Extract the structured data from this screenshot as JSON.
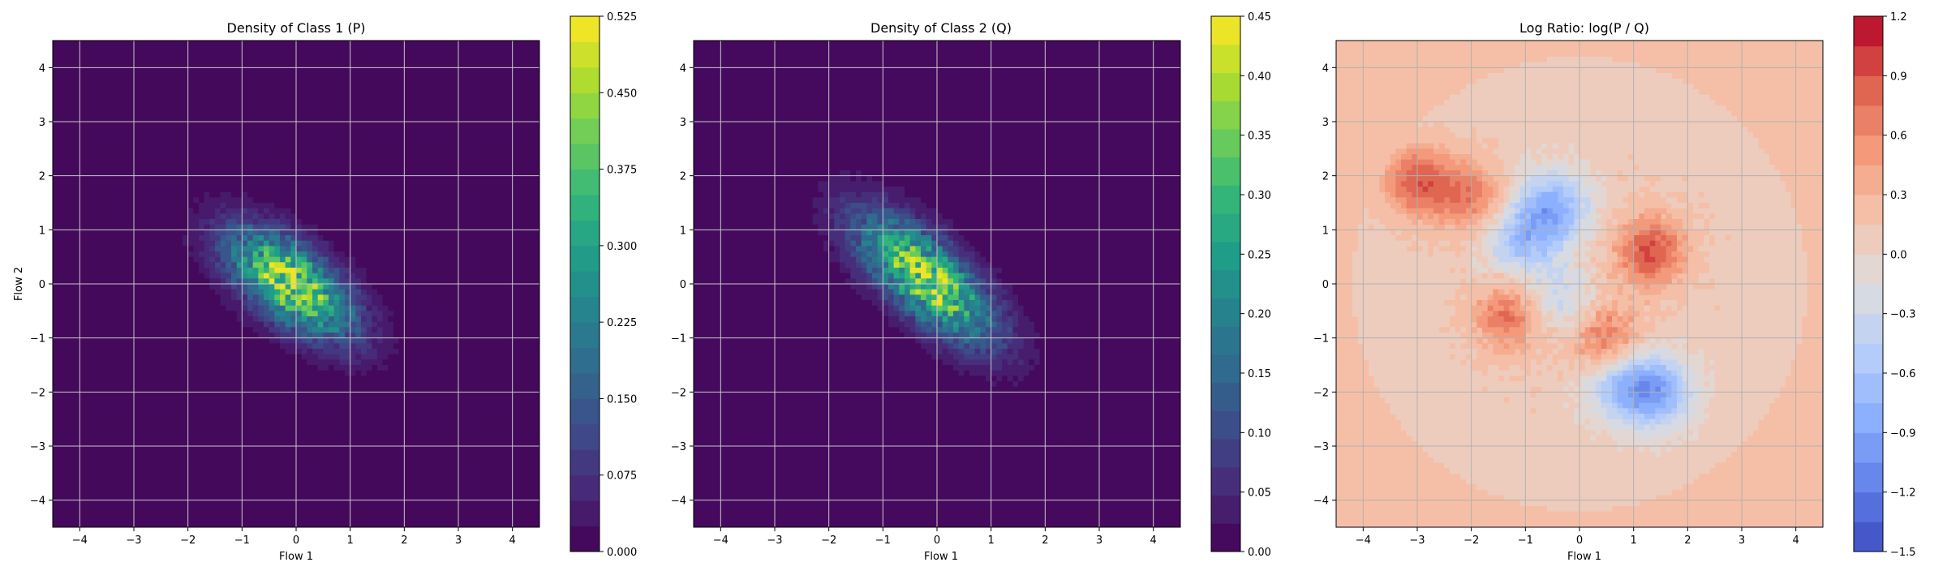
{
  "chart_data": [
    {
      "type": "heatmap",
      "title": "Density of Class 1 (P)",
      "xlabel": "Flow 1",
      "ylabel": "Flow 2",
      "xlim": [
        -4.5,
        4.5
      ],
      "ylim": [
        -4.5,
        4.5
      ],
      "xticks": [
        "−4",
        "−3",
        "−2",
        "−1",
        "0",
        "1",
        "2",
        "3",
        "4"
      ],
      "yticks": [
        "−4",
        "−3",
        "−2",
        "−1",
        "0",
        "1",
        "2",
        "3",
        "4"
      ],
      "grid": true,
      "colormap": "viridis",
      "colorbar": {
        "min": 0.0,
        "max": 0.525,
        "levels": 21,
        "ticks": [
          "0.000",
          "0.075",
          "0.150",
          "0.225",
          "0.300",
          "0.375",
          "0.450",
          "0.525"
        ]
      },
      "density": {
        "center": [
          -0.1,
          0.0
        ],
        "spread": [
          1.25,
          0.6
        ],
        "rotation_deg": -38,
        "peak": 0.52,
        "background": 0.0
      }
    },
    {
      "type": "heatmap",
      "title": "Density of Class 2 (Q)",
      "xlabel": "Flow 1",
      "ylabel": "",
      "xlim": [
        -4.5,
        4.5
      ],
      "ylim": [
        -4.5,
        4.5
      ],
      "xticks": [
        "−4",
        "−3",
        "−2",
        "−1",
        "0",
        "1",
        "2",
        "3",
        "4"
      ],
      "yticks": [
        "−4",
        "−3",
        "−2",
        "−1",
        "0",
        "1",
        "2",
        "3",
        "4"
      ],
      "grid": true,
      "colormap": "viridis",
      "colorbar": {
        "min": 0.0,
        "max": 0.45,
        "levels": 19,
        "ticks": [
          "0.00",
          "0.05",
          "0.10",
          "0.15",
          "0.20",
          "0.25",
          "0.30",
          "0.35",
          "0.40",
          "0.45"
        ]
      },
      "density": {
        "center": [
          -0.2,
          0.1
        ],
        "spread": [
          1.45,
          0.6
        ],
        "rotation_deg": -42,
        "peak": 0.44,
        "background": 0.0
      }
    },
    {
      "type": "heatmap",
      "title": "Log Ratio: log(P / Q)",
      "xlabel": "Flow 1",
      "ylabel": "",
      "xlim": [
        -4.5,
        4.5
      ],
      "ylim": [
        -4.5,
        4.5
      ],
      "xticks": [
        "−4",
        "−3",
        "−2",
        "−1",
        "0",
        "1",
        "2",
        "3",
        "4"
      ],
      "yticks": [
        "−4",
        "−3",
        "−2",
        "−1",
        "0",
        "1",
        "2",
        "3",
        "4"
      ],
      "grid": true,
      "colormap": "coolwarm",
      "colorbar": {
        "min": -1.5,
        "max": 1.2,
        "levels": 18,
        "ticks": [
          "−1.5",
          "−1.2",
          "−0.9",
          "−0.6",
          "−0.3",
          "0.0",
          "0.3",
          "0.6",
          "0.9",
          "1.2"
        ]
      },
      "blobs": [
        {
          "x": -3.0,
          "y": 1.9,
          "value": 0.75
        },
        {
          "x": -2.0,
          "y": 1.6,
          "value": 0.6
        },
        {
          "x": 1.3,
          "y": 0.6,
          "value": 0.85
        },
        {
          "x": 0.5,
          "y": -1.1,
          "value": 0.75
        },
        {
          "x": -1.3,
          "y": -0.6,
          "value": 0.7
        },
        {
          "x": -0.5,
          "y": 1.4,
          "value": -0.9
        },
        {
          "x": -1.1,
          "y": 0.8,
          "value": -0.65
        },
        {
          "x": 1.4,
          "y": -2.0,
          "value": -0.95
        },
        {
          "x": 0.7,
          "y": -1.8,
          "value": -0.7
        },
        {
          "x": -0.4,
          "y": -0.3,
          "value": -0.45
        }
      ],
      "background": 0.3
    }
  ]
}
